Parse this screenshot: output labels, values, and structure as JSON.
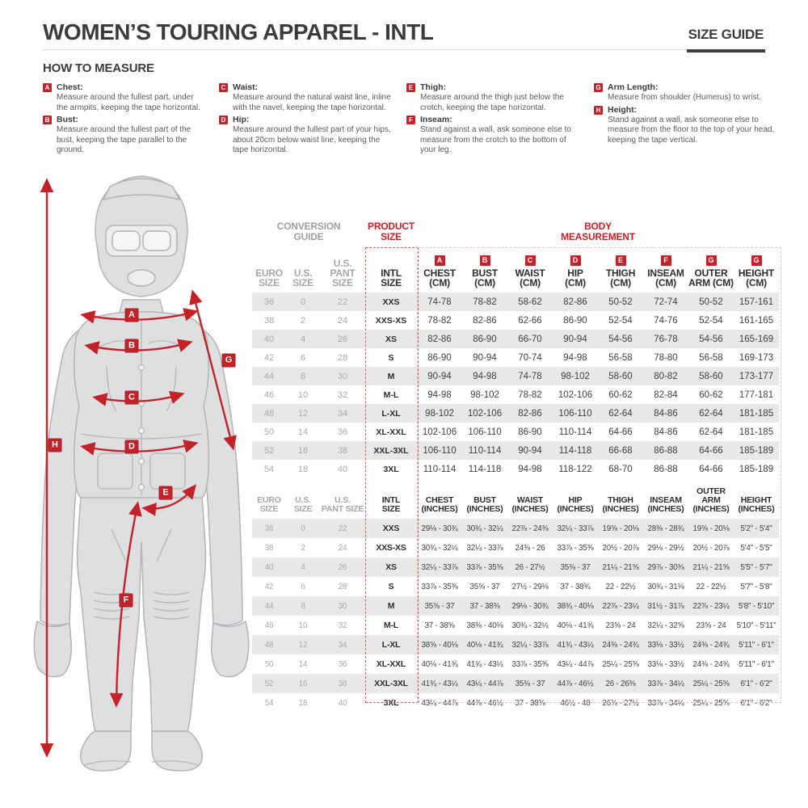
{
  "page": {
    "title": "WOMEN’S TOURING APPAREL - INTL",
    "size_guide": "SIZE GUIDE"
  },
  "how_to_measure": {
    "title": "HOW TO MEASURE",
    "items": [
      {
        "letter": "A",
        "name": "Chest:",
        "text": "Measure around the fullest part, under the armpits, keeping the tape horizontal."
      },
      {
        "letter": "B",
        "name": "Bust:",
        "text": "Measure around the fullest part of the bust, keeping the tape parallel to the ground."
      },
      {
        "letter": "C",
        "name": "Waist:",
        "text": "Measure around the natural waist line, inline with the navel, keeping the tape horizontal."
      },
      {
        "letter": "D",
        "name": "Hip:",
        "text": "Measure around the fullest part of your hips, about 20cm below waist line, keeping the tape horizontal."
      },
      {
        "letter": "E",
        "name": "Thigh:",
        "text": "Measure around the thigh just below the crotch, keeping the tape horizontal."
      },
      {
        "letter": "F",
        "name": "Inseam:",
        "text": "Stand against a wall, ask someone else to measure from the crotch to the bottom of your leg."
      },
      {
        "letter": "G",
        "name": "Arm Length:",
        "text": "Measure from shoulder (Humerus) to wrist."
      },
      {
        "letter": "H",
        "name": "Height:",
        "text": "Stand against a wall, ask someone else to measure from the floor to the top of your head, keeping the tape vertical."
      }
    ]
  },
  "figure": {
    "badges": {
      "a": "A",
      "b": "B",
      "c": "C",
      "d": "D",
      "e": "E",
      "f": "F",
      "g": "G",
      "h": "H"
    }
  },
  "tables": {
    "group_headers": {
      "conversion": "CONVERSION\nGUIDE",
      "product": "PRODUCT\nSIZE",
      "body": "BODY\nMEASUREMENT"
    },
    "cm": {
      "badges": [
        "",
        "",
        "",
        "",
        "A",
        "B",
        "C",
        "D",
        "E",
        "F",
        "G",
        "G"
      ],
      "headers": [
        "EURO\nSIZE",
        "U.S.\nSIZE",
        "U.S.\nPANT SIZE",
        "INTL\nSIZE",
        "CHEST\n(CM)",
        "BUST\n(CM)",
        "WAIST\n(CM)",
        "HIP\n(CM)",
        "THIGH\n(CM)",
        "INSEAM\n(CM)",
        "OUTER\nARM (CM)",
        "HEIGHT\n(CM)"
      ],
      "rows": [
        [
          "36",
          "0",
          "22",
          "XXS",
          "74-78",
          "78-82",
          "58-62",
          "82-86",
          "50-52",
          "72-74",
          "50-52",
          "157-161"
        ],
        [
          "38",
          "2",
          "24",
          "XXS-XS",
          "78-82",
          "82-86",
          "62-66",
          "86-90",
          "52-54",
          "74-76",
          "52-54",
          "161-165"
        ],
        [
          "40",
          "4",
          "26",
          "XS",
          "82-86",
          "86-90",
          "66-70",
          "90-94",
          "54-56",
          "76-78",
          "54-56",
          "165-169"
        ],
        [
          "42",
          "6",
          "28",
          "S",
          "86-90",
          "90-94",
          "70-74",
          "94-98",
          "56-58",
          "78-80",
          "56-58",
          "169-173"
        ],
        [
          "44",
          "8",
          "30",
          "M",
          "90-94",
          "94-98",
          "74-78",
          "98-102",
          "58-60",
          "80-82",
          "58-60",
          "173-177"
        ],
        [
          "46",
          "10",
          "32",
          "M-L",
          "94-98",
          "98-102",
          "78-82",
          "102-106",
          "60-62",
          "82-84",
          "60-62",
          "177-181"
        ],
        [
          "48",
          "12",
          "34",
          "L-XL",
          "98-102",
          "102-106",
          "82-86",
          "106-110",
          "62-64",
          "84-86",
          "62-64",
          "181-185"
        ],
        [
          "50",
          "14",
          "36",
          "XL-XXL",
          "102-106",
          "106-110",
          "86-90",
          "110-114",
          "64-66",
          "84-86",
          "62-64",
          "181-185"
        ],
        [
          "52",
          "16",
          "38",
          "XXL-3XL",
          "106-110",
          "110-114",
          "90-94",
          "114-118",
          "66-68",
          "86-88",
          "64-66",
          "185-189"
        ],
        [
          "54",
          "18",
          "40",
          "3XL",
          "110-114",
          "114-118",
          "94-98",
          "118-122",
          "68-70",
          "86-88",
          "64-66",
          "185-189"
        ]
      ]
    },
    "inches": {
      "badges": [
        "",
        "",
        "",
        "",
        "",
        "",
        "",
        "",
        "",
        "",
        "",
        ""
      ],
      "headers": [
        "EURO\nSIZE",
        "U.S.\nSIZE",
        "U.S.\nPANT SIZE",
        "INTL\nSIZE",
        "CHEST\n(INCHES)",
        "BUST\n(INCHES)",
        "WAIST\n(INCHES)",
        "HIP\n(INCHES)",
        "THIGH\n(INCHES)",
        "INSEAM\n(INCHES)",
        "OUTER ARM\n(INCHES)",
        "HEIGHT\n(INCHES)"
      ],
      "rows": [
        [
          "36",
          "0",
          "22",
          "XXS",
          "29⅛ - 30¾",
          "30¾ - 32¼",
          "22⅞ - 24⅜",
          "32¼ - 33⅞",
          "19⅝ - 20⅛",
          "28⅜ - 28¾",
          "19⅝ - 20⅛",
          "5'2\" - 5'4\""
        ],
        [
          "38",
          "2",
          "24",
          "XXS-XS",
          "30¾ - 32¼",
          "32¼ - 33⅞",
          "24⅜ - 26",
          "33⅞ - 35⅜",
          "20½ - 20⅞",
          "29⅛ - 29½",
          "20½ - 20⅞",
          "5'4\" - 5'5\""
        ],
        [
          "40",
          "4",
          "26",
          "XS",
          "32¼ - 33⅞",
          "33⅞ - 35⅝",
          "26 - 27½",
          "35⅜ - 37",
          "21¼ - 21⅝",
          "29⅞ - 30⅜",
          "21¼ - 21⅝",
          "5'5\" - 5'7\""
        ],
        [
          "42",
          "6",
          "28",
          "S",
          "33⅞ - 35⅜",
          "35⅝ - 37",
          "27½ - 29⅛",
          "37 - 38¾",
          "22 - 22½",
          "30¾ - 31⅛",
          "22 - 22½",
          "5'7\" - 5'8\""
        ],
        [
          "44",
          "8",
          "30",
          "M",
          "35⅝ - 37",
          "37 - 38⅜",
          "29⅛ - 30¾",
          "38¾ - 40⅛",
          "22⅞ - 23¼",
          "31½ - 31⅞",
          "22⅞ - 23¼",
          "5'8\" - 5'10\""
        ],
        [
          "46",
          "10",
          "32",
          "M-L",
          "37 - 38⅝",
          "38⅜ - 40⅛",
          "30¾ - 32¼",
          "40⅛ - 41¾",
          "23⅝ - 24",
          "32¼ - 32⅝",
          "23⅝ - 24",
          "5'10\" - 5'11\""
        ],
        [
          "48",
          "12",
          "34",
          "L-XL",
          "38⅝ - 40⅛",
          "40⅛ - 41¾",
          "32¼ - 33⅞",
          "41¾ - 43¼",
          "24⅜ - 24¾",
          "33⅛ - 33½",
          "24⅜ - 24¾",
          "5'11\" - 6'1\""
        ],
        [
          "50",
          "14",
          "36",
          "XL-XXL",
          "40⅛ - 41¾",
          "41¾ - 43¼",
          "33⅞ - 35⅜",
          "43¼ - 44⅞",
          "25¼ - 25⅝",
          "33⅛ - 33½",
          "24⅜ - 24¾",
          "5'11\" - 6'1\""
        ],
        [
          "52",
          "16",
          "38",
          "XXL-3XL",
          "41¾ - 43¼",
          "43¼ - 44⅞",
          "35⅜ - 37",
          "44⅞ - 46½",
          "26 - 26⅜",
          "33⅞ - 34¼",
          "25¼ - 25⅝",
          "6'1\" - 6'2\""
        ],
        [
          "54",
          "18",
          "40",
          "3XL",
          "43¼ - 44⅞",
          "44⅞ - 46½",
          "37 - 38⅜",
          "46½ - 48",
          "26⅜ - 27½",
          "33⅞ - 34¼",
          "25¼ - 25⅝",
          "6'1\" - 6'2\""
        ]
      ]
    }
  },
  "colors": {
    "accent_red": "#c32229",
    "stripe_gray": "#e8e8e9",
    "muted_gray": "#a5a7a9"
  }
}
